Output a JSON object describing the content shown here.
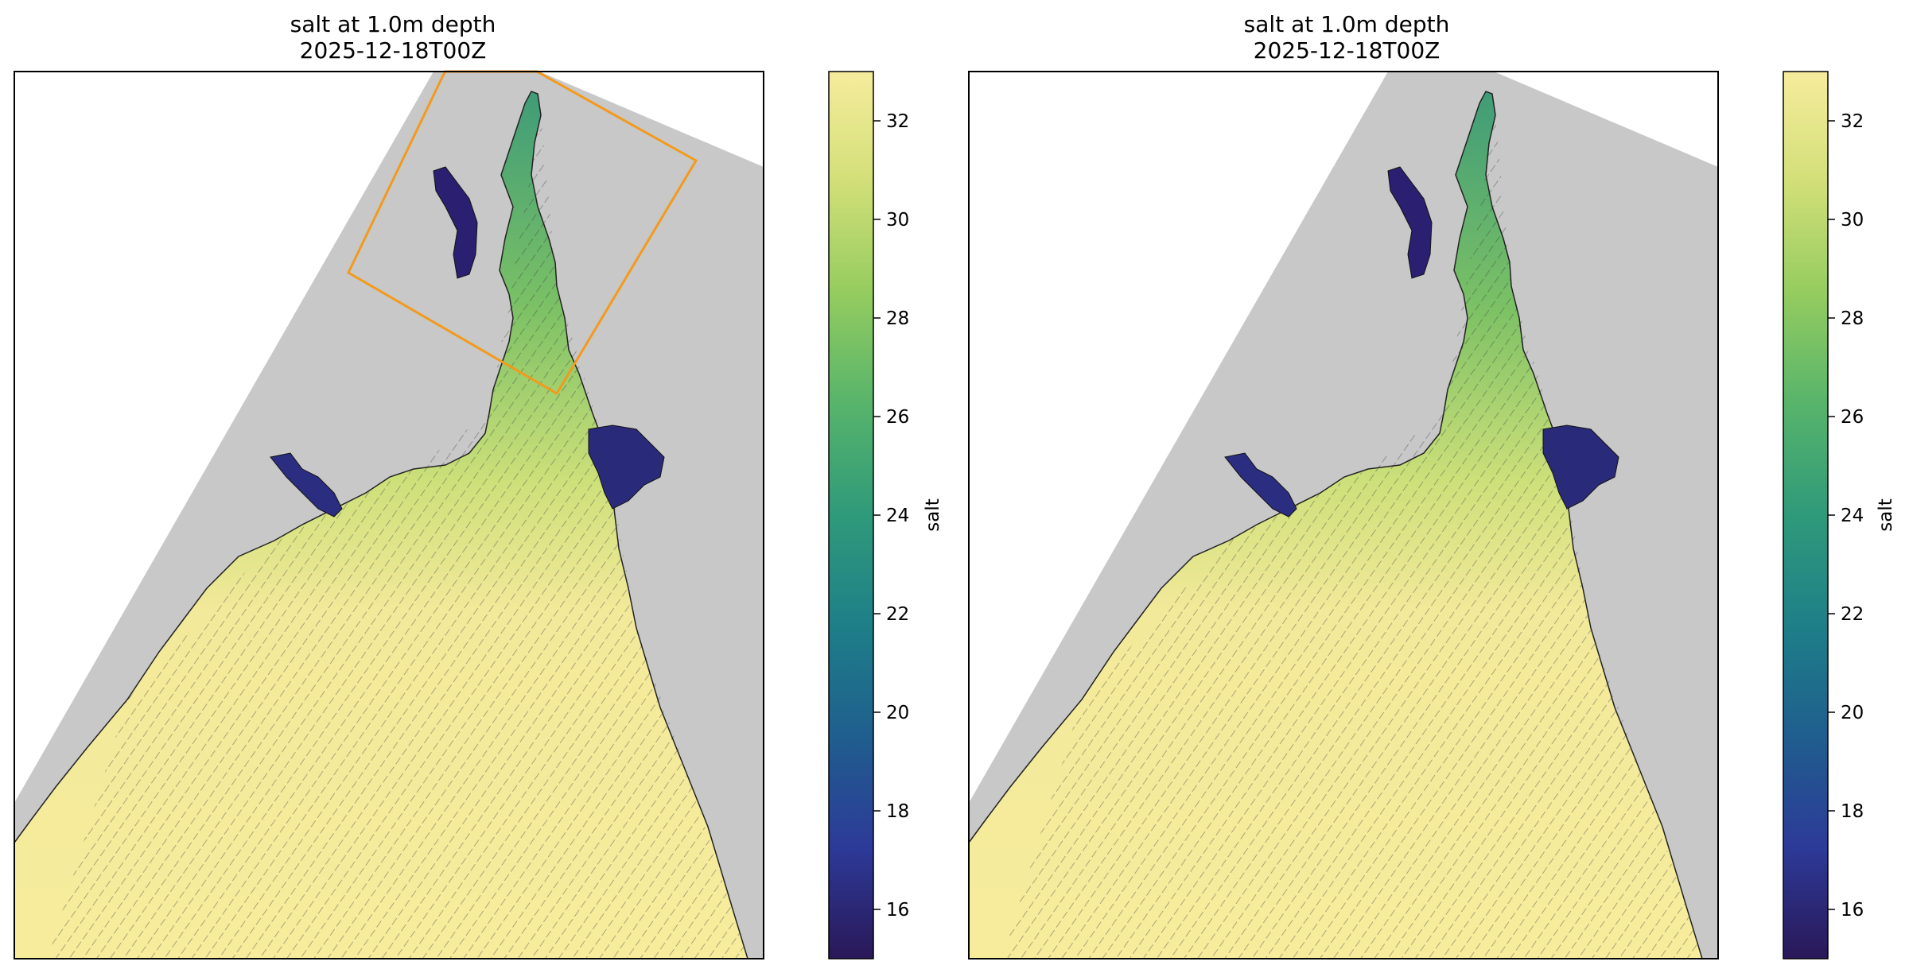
{
  "chart_data": [
    {
      "type": "heatmap",
      "title": "salt at 1.0m depth",
      "subtitle": "2025-12-18T00Z",
      "colorbar": {
        "label": "salt",
        "range": [
          15,
          33
        ],
        "ticks": [
          "16",
          "18",
          "20",
          "22",
          "24",
          "26",
          "28",
          "30",
          "32"
        ],
        "colormap": [
          "#2a1858",
          "#2d3a98",
          "#1f5e8e",
          "#1e7f88",
          "#2f9a7a",
          "#57b46b",
          "#94cc5f",
          "#d2df78",
          "#f6ec9c"
        ]
      },
      "land_color": "#c8c8c8",
      "highlight_box": true,
      "highlight_color": "#f39a1d"
    },
    {
      "type": "heatmap",
      "title": "salt at 1.0m depth",
      "subtitle": "2025-12-18T00Z",
      "colorbar": {
        "label": "salt",
        "range": [
          15,
          33
        ],
        "ticks": [
          "16",
          "18",
          "20",
          "22",
          "24",
          "26",
          "28",
          "30",
          "32"
        ],
        "colormap": [
          "#2a1858",
          "#2d3a98",
          "#1f5e8e",
          "#1e7f88",
          "#2f9a7a",
          "#57b46b",
          "#94cc5f",
          "#d2df78",
          "#f6ec9c"
        ]
      },
      "land_color": "#c8c8c8",
      "highlight_box": false,
      "highlight_color": "#f39a1d"
    }
  ]
}
